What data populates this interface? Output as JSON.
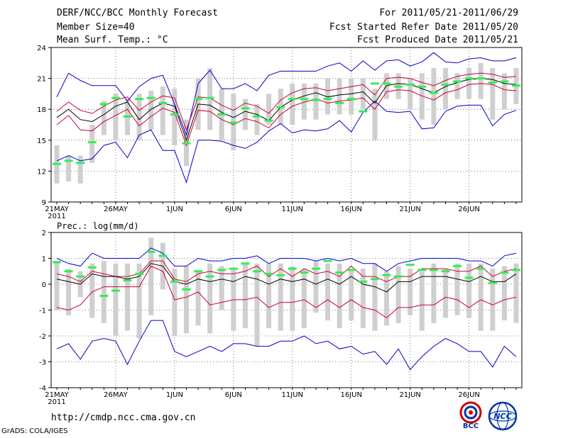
{
  "header": {
    "title": "DERF/NCC/BCC Monthly Forecast",
    "member_size": "Member Size=40",
    "variable": "Mean Surf. Temp.: °C",
    "period": "For 2011/05/21-2011/06/29",
    "start_date": "Fcst Started Refer Date 2011/05/20",
    "produced_date": "Fcst Produced Date 2011/05/21"
  },
  "colors": {
    "ensemble_mean": "#000000",
    "spread": "#cc0033",
    "extreme": "#0000cc",
    "box": "#cfcfcf",
    "observed": "#33ee55",
    "grid": "#555555"
  },
  "chart_data": [
    {
      "type": "line",
      "title": "Mean Surf. Temp.: °C",
      "x_start": "2011-05-21",
      "days": 40,
      "xlabel_ticks": [
        "21MAY",
        "26MAY",
        "1JUN",
        "6JUN",
        "11JUN",
        "16JUN",
        "21JUN",
        "26JUN"
      ],
      "xlabel_year": "2011",
      "ylim": [
        9,
        24
      ],
      "yticks": [
        9,
        12,
        15,
        18,
        21,
        24
      ],
      "series": [
        {
          "name": "mean",
          "values": [
            17.2,
            18.0,
            17.0,
            16.8,
            17.5,
            18.3,
            18.7,
            17.0,
            18.0,
            18.6,
            18.3,
            15.0,
            18.5,
            18.4,
            17.7,
            17.2,
            17.8,
            17.5,
            16.9,
            18.2,
            18.9,
            19.3,
            19.6,
            19.2,
            19.4,
            19.5,
            19.7,
            18.6,
            20.3,
            20.5,
            20.4,
            20.0,
            19.6,
            20.2,
            20.6,
            20.9,
            21.0,
            20.9,
            20.5,
            20.4
          ]
        },
        {
          "name": "spread_upper",
          "values": [
            17.8,
            18.7,
            17.9,
            17.6,
            18.3,
            18.9,
            19.2,
            17.9,
            18.7,
            19.3,
            19.1,
            16.0,
            19.2,
            19.1,
            18.4,
            17.9,
            18.6,
            18.3,
            17.6,
            18.9,
            19.6,
            20.0,
            20.1,
            19.8,
            20.0,
            20.2,
            20.4,
            19.4,
            21.0,
            21.1,
            21.0,
            20.6,
            20.3,
            20.8,
            21.2,
            21.4,
            21.5,
            21.4,
            21.1,
            21.2
          ]
        },
        {
          "name": "spread_lower",
          "values": [
            16.5,
            17.4,
            16.0,
            15.9,
            16.8,
            17.4,
            18.0,
            16.4,
            17.3,
            18.1,
            17.7,
            14.5,
            17.9,
            17.8,
            17.0,
            16.5,
            17.1,
            16.8,
            16.2,
            17.5,
            18.3,
            18.7,
            19.0,
            18.6,
            18.8,
            18.9,
            19.1,
            18.0,
            19.7,
            19.9,
            19.8,
            19.3,
            18.9,
            19.6,
            19.9,
            20.4,
            20.5,
            20.4,
            19.9,
            19.8
          ]
        },
        {
          "name": "max",
          "values": [
            19.2,
            21.5,
            20.8,
            20.3,
            20.3,
            20.3,
            18.8,
            20.2,
            21.0,
            21.3,
            18.5,
            15.5,
            20.5,
            21.8,
            20.0,
            20.0,
            20.5,
            19.8,
            21.3,
            21.7,
            21.7,
            21.7,
            21.7,
            22.2,
            22.5,
            21.7,
            22.7,
            21.8,
            22.7,
            22.8,
            22.2,
            22.6,
            23.5,
            22.6,
            22.5,
            22.9,
            23.0,
            22.7,
            22.7,
            23.0
          ]
        },
        {
          "name": "min",
          "values": [
            13.0,
            13.5,
            13.0,
            13.2,
            14.5,
            14.8,
            13.3,
            15.5,
            16.0,
            14.0,
            14.0,
            10.9,
            15.0,
            15.0,
            14.9,
            14.5,
            14.2,
            14.8,
            15.9,
            16.6,
            15.7,
            16.0,
            15.9,
            16.1,
            16.9,
            15.8,
            17.7,
            18.8,
            17.8,
            17.7,
            17.8,
            16.1,
            16.2,
            17.8,
            18.3,
            18.4,
            18.4,
            16.4,
            17.5,
            17.9
          ]
        },
        {
          "name": "box_top",
          "values": [
            14.5,
            13.5,
            13.5,
            16.5,
            18.8,
            19.5,
            19.0,
            19.5,
            19.8,
            20.2,
            20.0,
            17.0,
            21.0,
            22.0,
            20.0,
            19.5,
            19.0,
            18.5,
            19.5,
            20.0,
            20.5,
            20.5,
            20.5,
            21.0,
            21.0,
            21.0,
            21.0,
            20.0,
            21.5,
            21.5,
            21.0,
            21.5,
            22.0,
            22.0,
            21.5,
            22.0,
            22.5,
            22.0,
            21.5,
            22.0
          ]
        },
        {
          "name": "box_bottom",
          "values": [
            10.8,
            11.0,
            10.8,
            12.8,
            15.5,
            15.0,
            15.5,
            15.0,
            16.0,
            15.5,
            14.5,
            12.5,
            16.0,
            16.0,
            15.0,
            14.0,
            16.0,
            15.5,
            16.5,
            16.5,
            16.5,
            17.0,
            17.0,
            17.5,
            17.5,
            17.5,
            18.0,
            15.0,
            19.0,
            19.0,
            18.0,
            17.0,
            16.5,
            18.0,
            19.0,
            19.0,
            19.0,
            17.0,
            18.0,
            18.5
          ]
        },
        {
          "name": "observed",
          "values": [
            12.7,
            13.0,
            12.8,
            14.8,
            18.5,
            19.1,
            17.3,
            19.0,
            19.1,
            18.6,
            17.5,
            14.7,
            19.0,
            19.1,
            17.5,
            16.7,
            18.1,
            17.3,
            16.9,
            18.2,
            19.0,
            19.0,
            18.9,
            19.0,
            18.6,
            19.0,
            17.8,
            20.5,
            20.5,
            20.2,
            20.4,
            20.2,
            19.6,
            20.4,
            20.7,
            21.0,
            21.0,
            20.6,
            20.7,
            20.3
          ]
        }
      ]
    },
    {
      "type": "line",
      "title": "Prec.: log(mm/d)",
      "x_start": "2011-05-21",
      "days": 40,
      "xlabel_ticks": [
        "21MAY",
        "26MAY",
        "1JUN",
        "6JUN",
        "11JUN",
        "16JUN",
        "21JUN",
        "26JUN"
      ],
      "xlabel_year": "2011",
      "ylim": [
        -4,
        2
      ],
      "yticks": [
        -4,
        -3,
        -2,
        -1,
        0,
        1,
        2
      ],
      "series": [
        {
          "name": "mean",
          "values": [
            0.2,
            0.1,
            0.0,
            0.4,
            0.3,
            0.3,
            0.2,
            0.3,
            0.8,
            0.7,
            0.1,
            0.0,
            0.2,
            0.1,
            0.2,
            0.1,
            0.3,
            0.2,
            0.0,
            0.2,
            0.1,
            0.2,
            0.0,
            0.2,
            0.0,
            0.3,
            0.0,
            -0.1,
            -0.3,
            0.1,
            0.1,
            0.3,
            0.3,
            0.3,
            0.2,
            0.1,
            0.3,
            0.1,
            0.1,
            0.4
          ]
        },
        {
          "name": "spread_upper",
          "values": [
            0.4,
            0.3,
            0.1,
            0.5,
            0.4,
            0.3,
            0.3,
            0.4,
            0.9,
            0.9,
            0.2,
            0.1,
            0.4,
            0.5,
            0.4,
            0.4,
            0.5,
            0.7,
            0.3,
            0.6,
            0.3,
            0.6,
            0.4,
            0.5,
            0.3,
            0.7,
            0.3,
            0.3,
            0.1,
            0.3,
            0.3,
            0.6,
            0.6,
            0.6,
            0.5,
            0.5,
            0.7,
            0.3,
            0.5,
            0.6
          ]
        },
        {
          "name": "spread_lower",
          "values": [
            -0.9,
            -1.0,
            -0.8,
            -0.3,
            -0.1,
            -0.1,
            -0.1,
            -0.1,
            0.7,
            0.5,
            -0.6,
            -0.5,
            -0.3,
            -0.8,
            -0.7,
            -0.6,
            -0.6,
            -0.5,
            -0.9,
            -0.7,
            -0.7,
            -0.6,
            -0.9,
            -0.6,
            -0.9,
            -0.6,
            -0.9,
            -1.0,
            -1.3,
            -0.9,
            -0.9,
            -0.8,
            -0.8,
            -0.5,
            -0.6,
            -0.9,
            -0.6,
            -0.8,
            -0.6,
            -0.5
          ]
        },
        {
          "name": "max",
          "values": [
            1.0,
            0.8,
            0.7,
            1.2,
            1.0,
            1.0,
            1.0,
            1.0,
            1.4,
            1.2,
            0.7,
            0.7,
            1.0,
            0.9,
            0.9,
            1.0,
            1.0,
            1.1,
            0.8,
            1.0,
            1.0,
            1.0,
            0.9,
            1.0,
            0.9,
            1.0,
            0.8,
            0.8,
            0.5,
            0.8,
            0.9,
            1.0,
            1.0,
            1.0,
            1.0,
            0.9,
            0.9,
            0.7,
            1.1,
            1.2
          ]
        },
        {
          "name": "min",
          "values": [
            -2.5,
            -2.3,
            -2.9,
            -2.2,
            -2.1,
            -2.2,
            -3.1,
            -2.2,
            -1.4,
            -1.4,
            -2.6,
            -2.8,
            -2.6,
            -2.4,
            -2.6,
            -2.3,
            -2.3,
            -2.4,
            -2.4,
            -2.2,
            -2.2,
            -2.0,
            -2.3,
            -2.2,
            -2.5,
            -2.4,
            -2.7,
            -2.6,
            -3.1,
            -2.5,
            -3.3,
            -2.8,
            -2.4,
            -2.1,
            -2.3,
            -2.6,
            -2.6,
            -3.2,
            -2.4,
            -2.8
          ]
        },
        {
          "name": "box_top",
          "values": [
            0.9,
            0.6,
            0.5,
            0.8,
            0.9,
            0.8,
            0.8,
            0.8,
            1.8,
            1.6,
            0.6,
            0.7,
            0.5,
            0.8,
            0.7,
            0.6,
            0.8,
            0.8,
            0.8,
            0.8,
            0.7,
            0.6,
            0.9,
            0.8,
            0.8,
            0.6,
            0.6,
            0.8,
            0.5,
            0.7,
            0.6,
            0.5,
            0.8,
            0.6,
            0.8,
            0.8,
            0.8,
            0.6,
            0.7,
            0.8
          ]
        },
        {
          "name": "box_bottom",
          "values": [
            -1.0,
            -1.2,
            -0.5,
            -1.3,
            -1.5,
            -2.0,
            -1.8,
            -2.1,
            -1.2,
            -0.2,
            -2.0,
            -1.9,
            -1.6,
            -1.9,
            -1.0,
            -1.8,
            -1.7,
            -2.4,
            -1.7,
            -1.8,
            -1.8,
            -1.7,
            -1.1,
            -1.4,
            -1.7,
            -1.4,
            -1.7,
            -1.8,
            -1.6,
            -1.5,
            -1.2,
            -1.8,
            -1.5,
            -1.3,
            -1.2,
            -1.3,
            -1.8,
            -1.8,
            -1.4,
            -1.5
          ]
        },
        {
          "name": "observed",
          "values": [
            0.85,
            0.5,
            0.3,
            0.65,
            -0.45,
            -0.25,
            0.15,
            0.4,
            1.25,
            1.1,
            0.1,
            -0.2,
            0.5,
            0.3,
            0.55,
            0.6,
            0.8,
            0.5,
            0.4,
            0.35,
            0.6,
            0.45,
            0.6,
            0.9,
            0.45,
            0.55,
            0.1,
            0.2,
            0.35,
            0.3,
            0.75,
            0.55,
            0.55,
            0.5,
            0.7,
            0.25,
            0.6,
            0.05,
            0.45,
            0.55
          ]
        }
      ]
    }
  ],
  "prec_label": "Prec.: log(mm/d)",
  "url": "http://cmdp.ncc.cma.gov.cn",
  "grads": "GrADS: COLA/IGES",
  "logos": {
    "bcc": "BCC",
    "ncc": "NCC"
  }
}
